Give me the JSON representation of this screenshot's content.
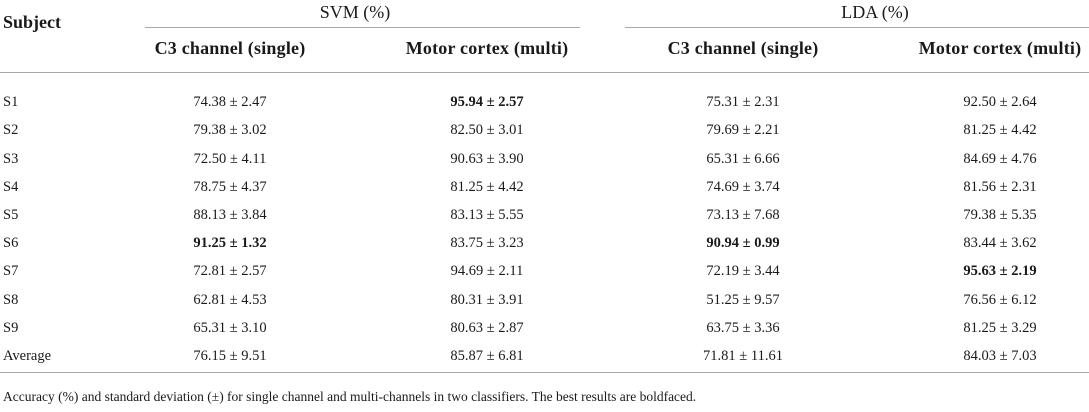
{
  "table": {
    "subject_header": "Subject",
    "groups": [
      {
        "label": "SVM (%)",
        "columns": [
          "C3 channel (single)",
          "Motor cortex (multi)"
        ]
      },
      {
        "label": "LDA (%)",
        "columns": [
          "C3 channel (single)",
          "Motor cortex (multi)"
        ]
      }
    ],
    "rows": [
      {
        "subject": "S1",
        "values": [
          "74.38 ± 2.47",
          "95.94 ± 2.57",
          "75.31 ± 2.31",
          "92.50 ± 2.64"
        ],
        "best": [
          false,
          true,
          false,
          false
        ]
      },
      {
        "subject": "S2",
        "values": [
          "79.38 ± 3.02",
          "82.50 ± 3.01",
          "79.69 ± 2.21",
          "81.25 ± 4.42"
        ],
        "best": [
          false,
          false,
          false,
          false
        ]
      },
      {
        "subject": "S3",
        "values": [
          "72.50 ± 4.11",
          "90.63 ± 3.90",
          "65.31 ± 6.66",
          "84.69 ± 4.76"
        ],
        "best": [
          false,
          false,
          false,
          false
        ]
      },
      {
        "subject": "S4",
        "values": [
          "78.75 ± 4.37",
          "81.25 ± 4.42",
          "74.69 ± 3.74",
          "81.56 ± 2.31"
        ],
        "best": [
          false,
          false,
          false,
          false
        ]
      },
      {
        "subject": "S5",
        "values": [
          "88.13 ± 3.84",
          "83.13 ± 5.55",
          "73.13 ± 7.68",
          "79.38 ± 5.35"
        ],
        "best": [
          false,
          false,
          false,
          false
        ]
      },
      {
        "subject": "S6",
        "values": [
          "91.25 ± 1.32",
          "83.75 ± 3.23",
          "90.94 ± 0.99",
          "83.44 ± 3.62"
        ],
        "best": [
          true,
          false,
          true,
          false
        ]
      },
      {
        "subject": "S7",
        "values": [
          "72.81 ± 2.57",
          "94.69 ± 2.11",
          "72.19 ± 3.44",
          "95.63 ± 2.19"
        ],
        "best": [
          false,
          false,
          false,
          true
        ]
      },
      {
        "subject": "S8",
        "values": [
          "62.81 ± 4.53",
          "80.31 ± 3.91",
          "51.25 ± 9.57",
          "76.56 ± 6.12"
        ],
        "best": [
          false,
          false,
          false,
          false
        ]
      },
      {
        "subject": "S9",
        "values": [
          "65.31 ± 3.10",
          "80.63 ± 2.87",
          "63.75 ± 3.36",
          "81.25 ± 3.29"
        ],
        "best": [
          false,
          false,
          false,
          false
        ]
      },
      {
        "subject": "Average",
        "values": [
          "76.15 ± 9.51",
          "85.87 ± 6.81",
          "71.81 ± 11.61",
          "84.03 ± 7.03"
        ],
        "best": [
          false,
          false,
          false,
          false
        ]
      }
    ]
  },
  "caption": "Accuracy (%) and standard deviation (±) for single channel and multi-channels in two classifiers. The best results are boldfaced."
}
